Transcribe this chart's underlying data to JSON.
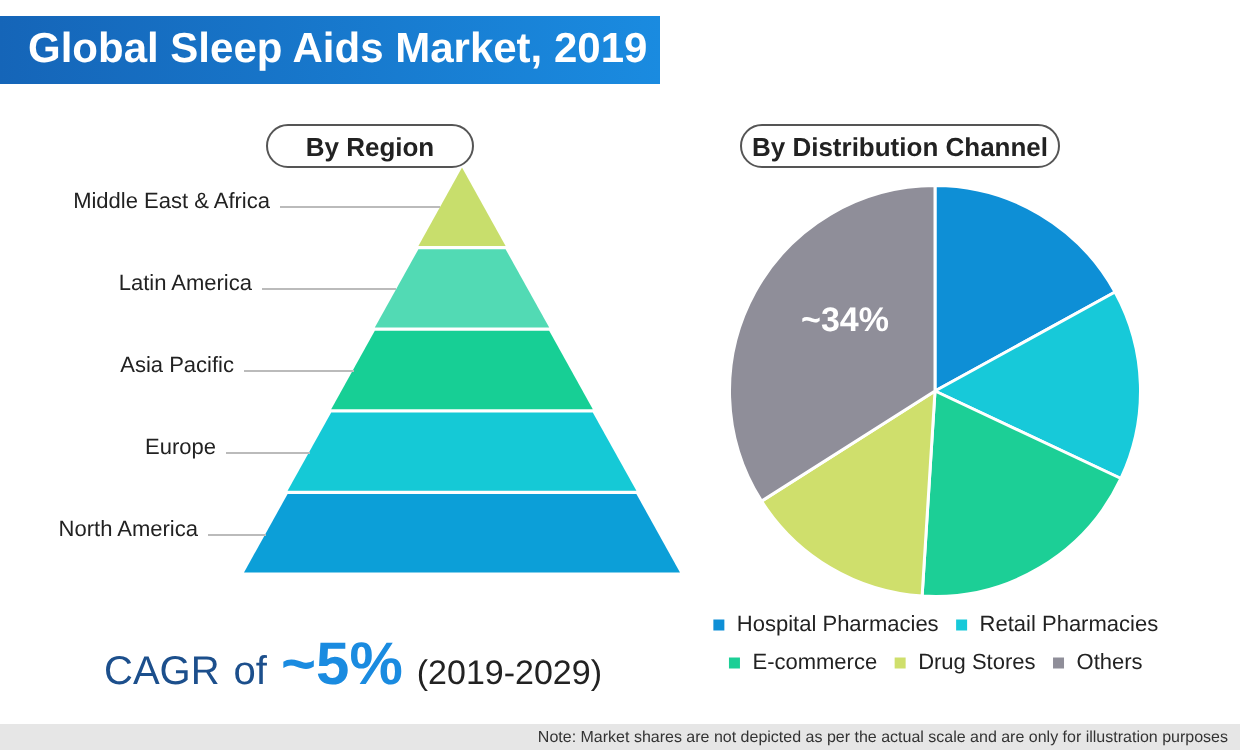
{
  "chart_data": [
    {
      "type": "other",
      "title": "Global Sleep Aids Market, 2019",
      "subtitle": "By Region",
      "categories": [
        "Middle East & Africa",
        "Latin America",
        "Asia Pacific",
        "Europe",
        "North America"
      ],
      "colors": [
        "#c8de6c",
        "#52dab4",
        "#17cf95",
        "#15c9d6",
        "#0c9fd8"
      ],
      "annotations": [
        "CAGR of ~5% (2019-2029)"
      ]
    },
    {
      "type": "pie",
      "title": "By Distribution Channel",
      "categories": [
        "Hospital Pharmacies",
        "Retail Pharmacies",
        "E-commerce",
        "Drug Stores",
        "Others"
      ],
      "values": [
        17,
        15,
        19,
        15,
        34
      ],
      "colors": [
        "#0e8fd6",
        "#17c9d9",
        "#1ccf96",
        "#cfdf6c",
        "#8f8e99"
      ],
      "value_labels": [
        null,
        null,
        null,
        null,
        "~34%"
      ],
      "legend": "bottom",
      "annotations": [
        "Note: Market shares are not depicted as per the actual scale and are only for illustration purposes"
      ]
    }
  ]
}
